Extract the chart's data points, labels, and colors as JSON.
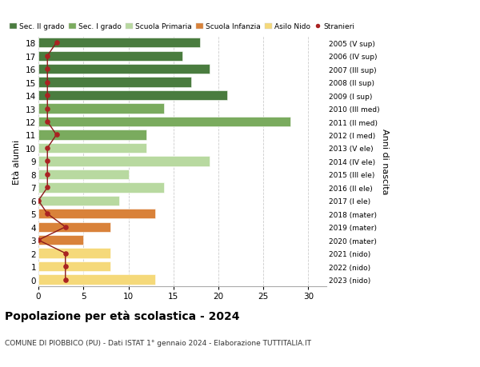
{
  "ages": [
    18,
    17,
    16,
    15,
    14,
    13,
    12,
    11,
    10,
    9,
    8,
    7,
    6,
    5,
    4,
    3,
    2,
    1,
    0
  ],
  "right_labels": [
    "2005 (V sup)",
    "2006 (IV sup)",
    "2007 (III sup)",
    "2008 (II sup)",
    "2009 (I sup)",
    "2010 (III med)",
    "2011 (II med)",
    "2012 (I med)",
    "2013 (V ele)",
    "2014 (IV ele)",
    "2015 (III ele)",
    "2016 (II ele)",
    "2017 (I ele)",
    "2018 (mater)",
    "2019 (mater)",
    "2020 (mater)",
    "2021 (nido)",
    "2022 (nido)",
    "2023 (nido)"
  ],
  "bar_values": [
    18,
    16,
    19,
    17,
    21,
    14,
    28,
    12,
    12,
    19,
    10,
    14,
    9,
    13,
    8,
    5,
    8,
    8,
    13
  ],
  "bar_colors": [
    "#4a7c3f",
    "#4a7c3f",
    "#4a7c3f",
    "#4a7c3f",
    "#4a7c3f",
    "#7aab5e",
    "#7aab5e",
    "#7aab5e",
    "#b8d9a0",
    "#b8d9a0",
    "#b8d9a0",
    "#b8d9a0",
    "#b8d9a0",
    "#d9823a",
    "#d9823a",
    "#d9823a",
    "#f5d97a",
    "#f5d97a",
    "#f5d97a"
  ],
  "stranieri_values": [
    2,
    1,
    1,
    1,
    1,
    1,
    1,
    2,
    1,
    1,
    1,
    1,
    0,
    1,
    3,
    0,
    3,
    3,
    3
  ],
  "legend_labels": [
    "Sec. II grado",
    "Sec. I grado",
    "Scuola Primaria",
    "Scuola Infanzia",
    "Asilo Nido",
    "Stranieri"
  ],
  "legend_colors": [
    "#4a7c3f",
    "#7aab5e",
    "#b8d9a0",
    "#d9823a",
    "#f5d97a",
    "#aa2222"
  ],
  "title": "Popolazione per età scolastica - 2024",
  "subtitle": "COMUNE DI PIOBBICO (PU) - Dati ISTAT 1° gennaio 2024 - Elaborazione TUTTITALIA.IT",
  "ylabel": "Età alunni",
  "right_ylabel": "Anni di nascita",
  "xlim": [
    0,
    32
  ],
  "xticks": [
    0,
    5,
    10,
    15,
    20,
    25,
    30
  ],
  "background_color": "#ffffff",
  "grid_color": "#cccccc"
}
